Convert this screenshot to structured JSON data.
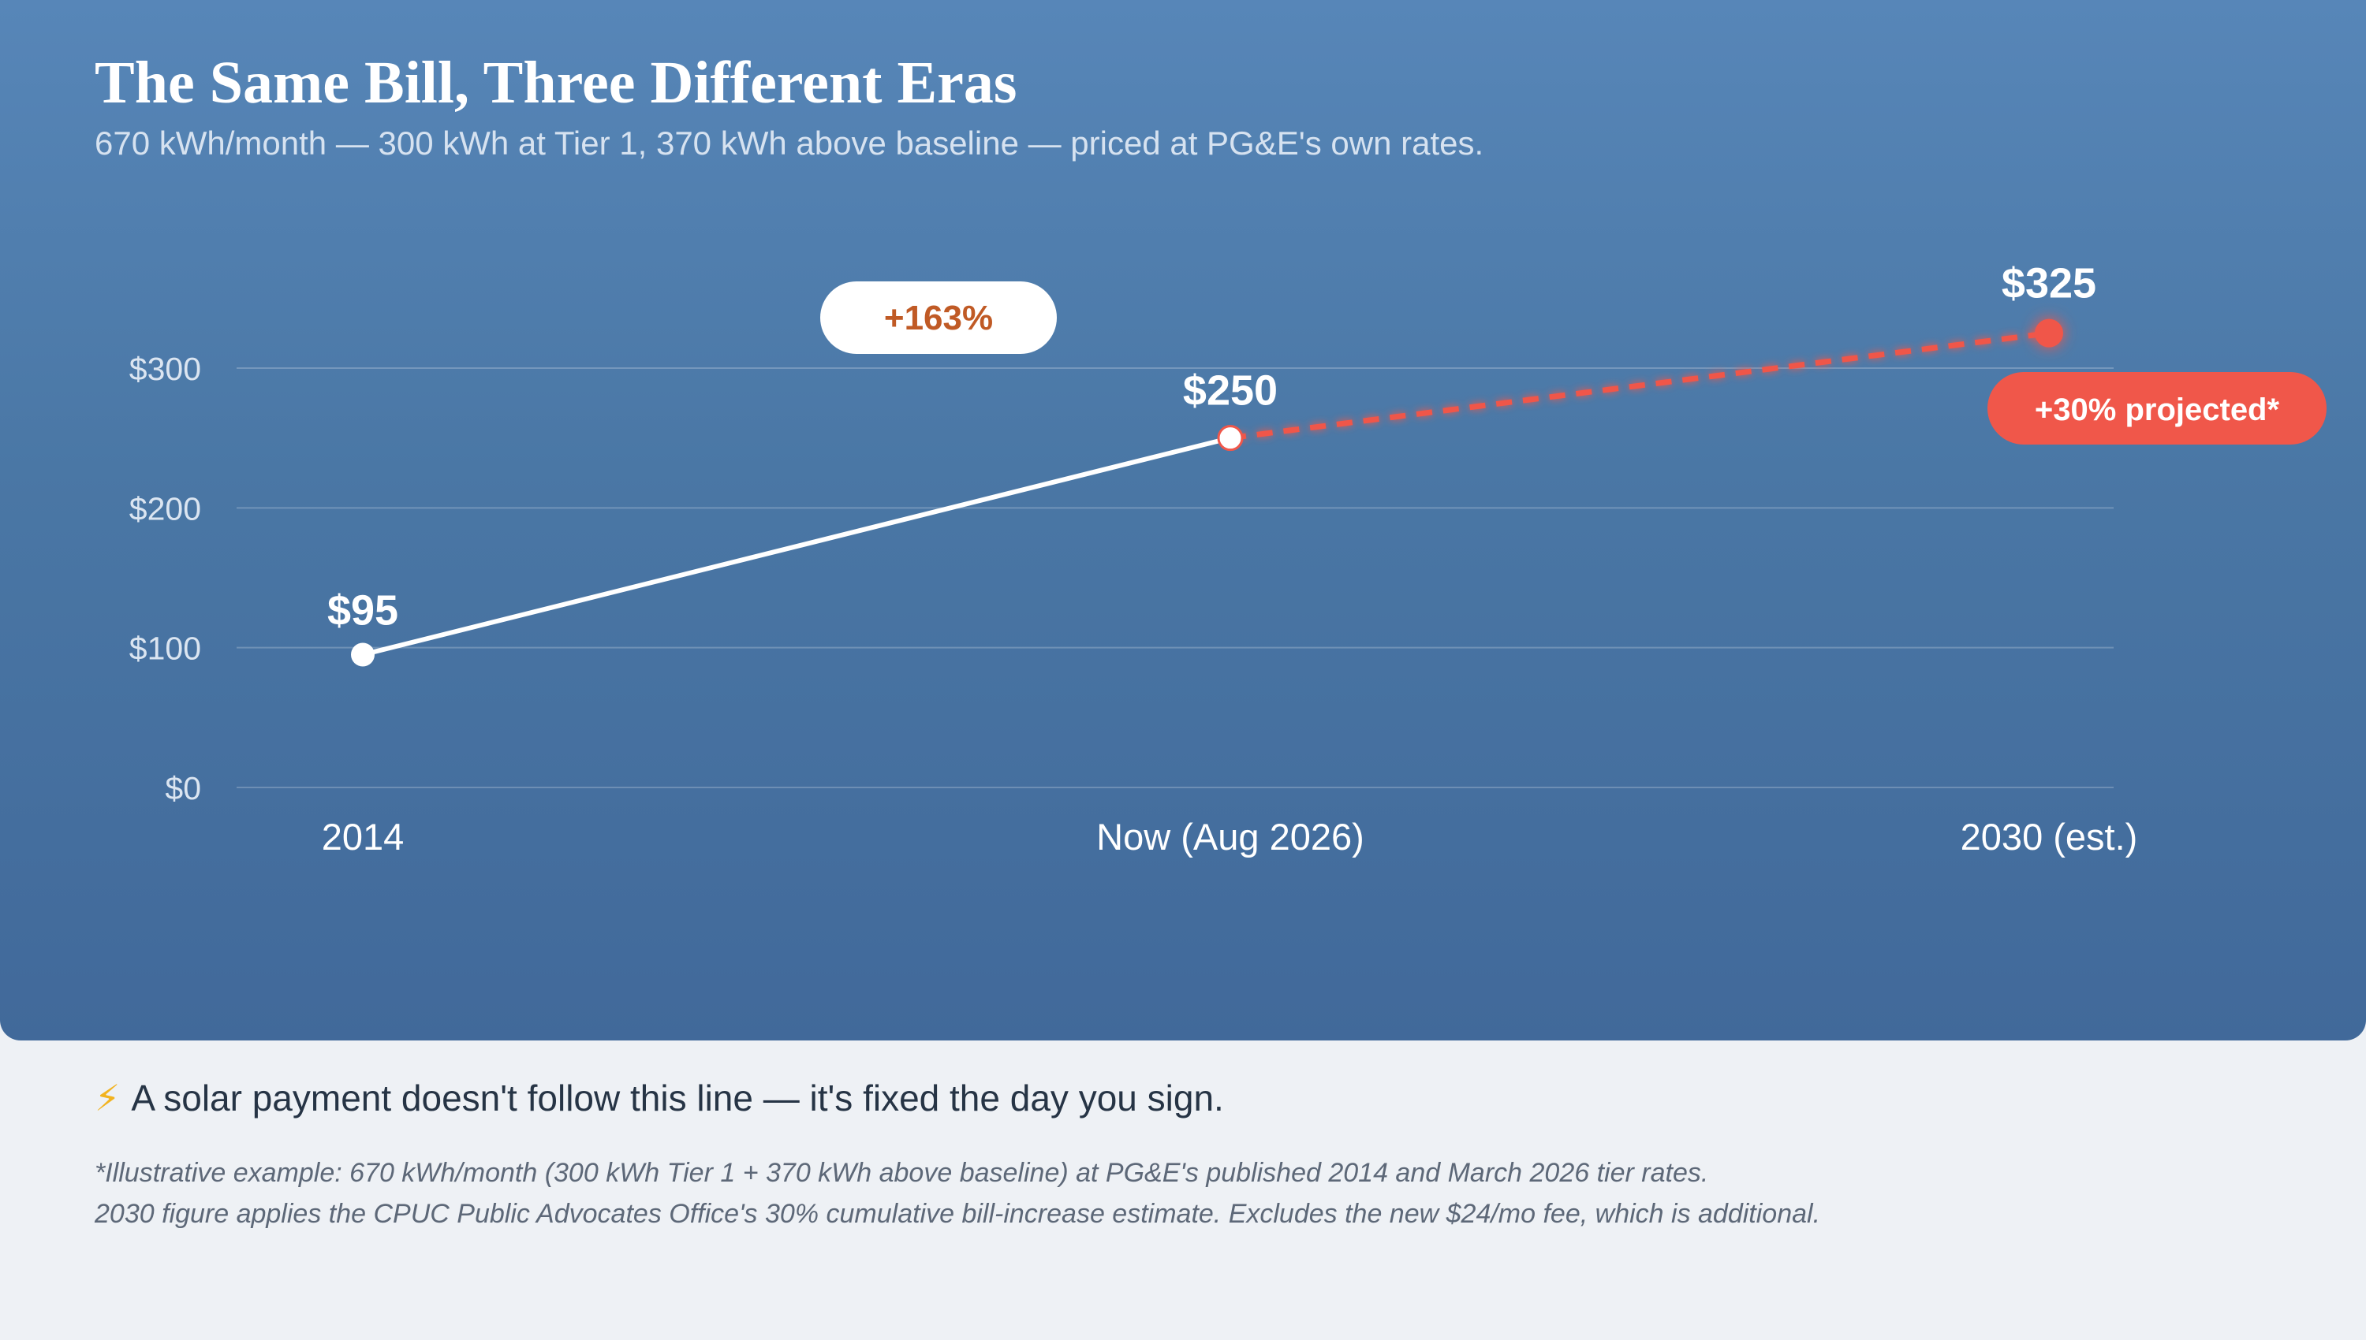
{
  "title": "The Same Bill, Three Different Eras",
  "subtitle": "670 kWh/month — 300 kWh at Tier 1, 370 kWh above baseline — priced at PG&E's own rates.",
  "takeaway": {
    "icon": "lightning-bolt-icon",
    "glyph": "⚡",
    "text": "A solar payment doesn't follow this line — it's fixed the day you sign."
  },
  "footnote": {
    "line1": "*Illustrative example: 670 kWh/month (300 kWh Tier 1 + 370 kWh above baseline) at PG&E's published 2014 and March 2026 tier rates.",
    "line2": "2030 figure applies the CPUC Public Advocates Office's 30% cumulative bill-increase estimate. Excludes the new $24/mo fee, which is additional."
  },
  "colors": {
    "background_top": "#5786b8",
    "background_bottom": "#41699a",
    "line": "#ffffff",
    "projection": "#f0574a",
    "increase_text": "#c05a25"
  },
  "chart_data": {
    "type": "line",
    "categories": [
      "2014",
      "Now (Aug 2026)",
      "2030 (est.)"
    ],
    "series": [
      {
        "values": [
          95,
          250,
          325
        ]
      }
    ],
    "point_labels": [
      "$95",
      "$250",
      "$325"
    ],
    "projected_from_index": 1,
    "yticks": [
      0,
      100,
      200,
      300
    ],
    "ytick_labels": [
      "$0",
      "$100",
      "$200",
      "$300"
    ],
    "ylim": [
      0,
      330
    ],
    "grid": true,
    "annotations": [
      {
        "text": "+163%",
        "style": "badge-white"
      },
      {
        "text": "+30% projected*",
        "style": "badge-red"
      }
    ]
  }
}
